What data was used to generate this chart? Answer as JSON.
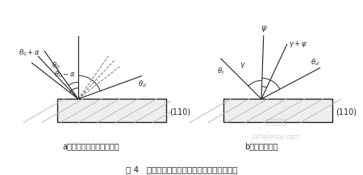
{
  "fig_width": 4.5,
  "fig_height": 2.18,
  "dpi": 100,
  "bg_color": "#ffffff",
  "line_color": "#222222",
  "gray_line": "#777777",
  "light_gray": "#bbbbbb",
  "caption_a": "a）试探法探测器扫描过程",
  "caption_b": "b）测得偏离角",
  "fig_caption": "图 4   试探法探测器扫描过程及测得偏离角示意",
  "watermark1": "嘉哈检测网",
  "watermark2": "jiahajiance.com",
  "label_110": "(110)"
}
